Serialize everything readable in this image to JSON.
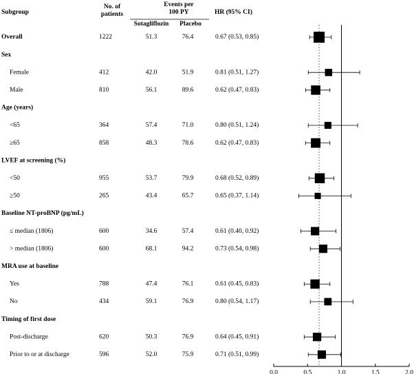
{
  "headers": {
    "subgroup": "Subgroup",
    "patients_line1": "No. of",
    "patients_line2": "patients",
    "events_line1": "Events per",
    "events_line2": "100 PY",
    "sotagliflozin": "Sotagliflozin",
    "placebo": "Placebo",
    "hr": "HR (95% CI)"
  },
  "colors": {
    "ink": "#000000",
    "reference_line": "#666666"
  },
  "chart_data": {
    "type": "forest",
    "title": "",
    "xlabel": "",
    "xlim": [
      0.0,
      2.0
    ],
    "xticks": [
      "0.0",
      "0.5",
      "1.0",
      "1.5",
      "2.0"
    ],
    "reference_lines": {
      "null_effect": 1.0,
      "overall_estimate": 0.67
    },
    "rows": [
      {
        "kind": "entry",
        "bold": true,
        "label": "Overall",
        "n": "1222",
        "sota": "51.3",
        "placebo": "76.4",
        "hr_text": "0.67 (0.53, 0.85)",
        "hr": 0.67,
        "lo": 0.53,
        "hi": 0.85,
        "n_value": 1222
      },
      {
        "kind": "header",
        "label": "Sex"
      },
      {
        "kind": "entry",
        "label": "Female",
        "n": "412",
        "sota": "42.0",
        "placebo": "51.9",
        "hr_text": "0.81 (0.51, 1.27)",
        "hr": 0.81,
        "lo": 0.51,
        "hi": 1.27,
        "n_value": 412
      },
      {
        "kind": "entry",
        "label": "Male",
        "n": "810",
        "sota": "56.1",
        "placebo": "89.6",
        "hr_text": "0.62 (0.47, 0.83)",
        "hr": 0.62,
        "lo": 0.47,
        "hi": 0.83,
        "n_value": 810
      },
      {
        "kind": "header",
        "label": "Age (years)"
      },
      {
        "kind": "entry",
        "label": "<65",
        "n": "364",
        "sota": "57.4",
        "placebo": "71.0",
        "hr_text": "0.80 (0.51, 1.24)",
        "hr": 0.8,
        "lo": 0.51,
        "hi": 1.24,
        "n_value": 364
      },
      {
        "kind": "entry",
        "label": "≥65",
        "n": "858",
        "sota": "48.3",
        "placebo": "78.6",
        "hr_text": "0.62 (0.47, 0.83)",
        "hr": 0.62,
        "lo": 0.47,
        "hi": 0.83,
        "n_value": 858
      },
      {
        "kind": "header",
        "label": "LVEF at screening (%)"
      },
      {
        "kind": "entry",
        "label": "<50",
        "n": "955",
        "sota": "53.7",
        "placebo": "79.9",
        "hr_text": "0.68 (0.52, 0.89)",
        "hr": 0.68,
        "lo": 0.52,
        "hi": 0.89,
        "n_value": 955
      },
      {
        "kind": "entry",
        "label": "≥50",
        "n": "265",
        "sota": "43.4",
        "placebo": "65.7",
        "hr_text": "0.65 (0.37, 1.14)",
        "hr": 0.65,
        "lo": 0.37,
        "hi": 1.14,
        "n_value": 265
      },
      {
        "kind": "header",
        "label": "Baseline NT-proBNP (pg/mL)"
      },
      {
        "kind": "entry",
        "label": "≤ median (1806)",
        "n": "600",
        "sota": "34.6",
        "placebo": "57.4",
        "hr_text": "0.61 (0.40, 0.92)",
        "hr": 0.61,
        "lo": 0.4,
        "hi": 0.92,
        "n_value": 600
      },
      {
        "kind": "entry",
        "label": "> median (1806)",
        "n": "600",
        "sota": "68.1",
        "placebo": "94.2",
        "hr_text": "0.73 (0.54, 0.98)",
        "hr": 0.73,
        "lo": 0.54,
        "hi": 0.98,
        "n_value": 600
      },
      {
        "kind": "header",
        "label": "MRA use at baseline"
      },
      {
        "kind": "entry",
        "label": "Yes",
        "n": "788",
        "sota": "47.4",
        "placebo": "76.1",
        "hr_text": "0.61 (0.45, 0.83)",
        "hr": 0.61,
        "lo": 0.45,
        "hi": 0.83,
        "n_value": 788
      },
      {
        "kind": "entry",
        "label": "No",
        "n": "434",
        "sota": "59.1",
        "placebo": "76.9",
        "hr_text": "0.80 (0.54, 1.17)",
        "hr": 0.8,
        "lo": 0.54,
        "hi": 1.17,
        "n_value": 434
      },
      {
        "kind": "header",
        "label": "Timing of first dose"
      },
      {
        "kind": "entry",
        "label": "Post-discharge",
        "n": "620",
        "sota": "50.3",
        "placebo": "76.9",
        "hr_text": "0.64 (0.45, 0.91)",
        "hr": 0.64,
        "lo": 0.45,
        "hi": 0.91,
        "n_value": 620
      },
      {
        "kind": "entry",
        "label": "Prior to or at discharge",
        "n": "596",
        "sota": "52.0",
        "placebo": "75.9",
        "hr_text": "0.71 (0.51, 0.99)",
        "hr": 0.71,
        "lo": 0.51,
        "hi": 0.99,
        "n_value": 596
      }
    ]
  }
}
